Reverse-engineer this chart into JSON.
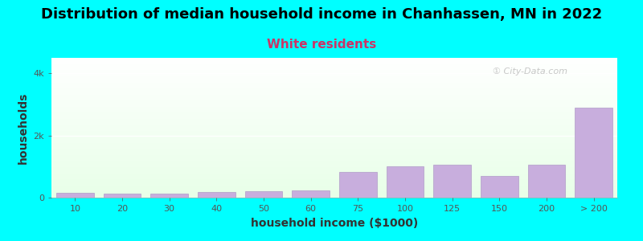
{
  "title": "Distribution of median household income in Chanhassen, MN in 2022",
  "subtitle": "White residents",
  "xlabel": "household income ($1000)",
  "ylabel": "households",
  "background_color": "#00FFFF",
  "bar_color": "#c8aedd",
  "bar_edge_color": "#b09cc8",
  "categories": [
    "10",
    "20",
    "30",
    "40",
    "50",
    "60",
    "75",
    "100",
    "125",
    "150",
    "200",
    "> 200"
  ],
  "values": [
    150,
    120,
    120,
    175,
    215,
    225,
    820,
    1000,
    1060,
    700,
    1050,
    2900
  ],
  "ylim": [
    0,
    4500
  ],
  "yticks": [
    0,
    2000,
    4000
  ],
  "ytick_labels": [
    "0",
    "2k",
    "4k"
  ],
  "title_fontsize": 13,
  "subtitle_fontsize": 11,
  "subtitle_color": "#cc3366",
  "axis_label_fontsize": 10,
  "tick_fontsize": 8,
  "watermark": "① City-Data.com"
}
